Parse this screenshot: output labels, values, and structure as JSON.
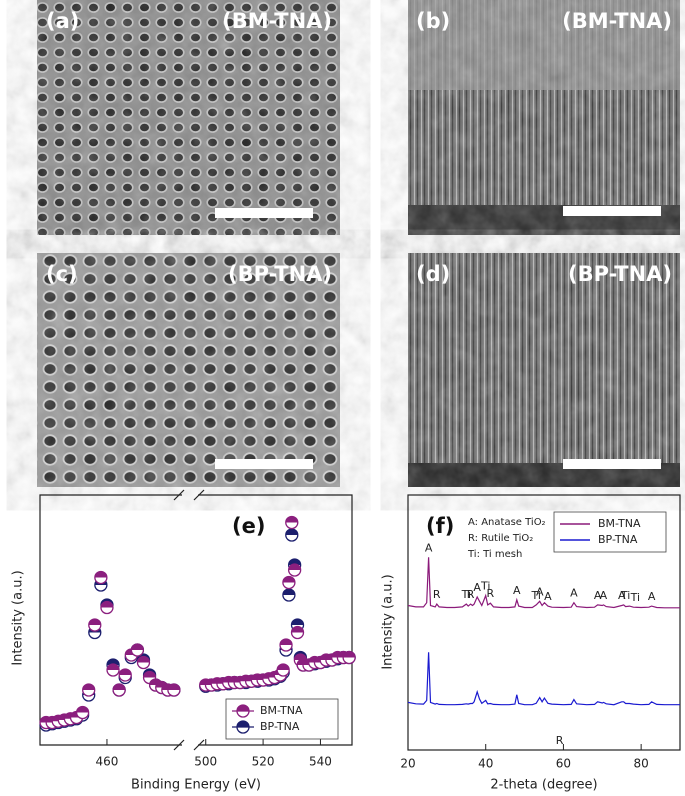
{
  "panels": [
    {
      "label": "(a)",
      "sample": "(BM-TNA)"
    },
    {
      "label": "(b)",
      "sample": "(BM-TNA)"
    },
    {
      "label": "(c)",
      "sample": "(BP-TNA)"
    },
    {
      "label": "(d)",
      "sample": "(BP-TNA)"
    }
  ],
  "chart_data": [
    {
      "type": "scatter",
      "label": "(e)",
      "xlabel": "Binding Energy (eV)",
      "ylabel": "Intensity (a.u.)",
      "xlim": [
        449,
        551
      ],
      "xbreak": [
        472,
        498
      ],
      "xticks": [
        460,
        500,
        520,
        540
      ],
      "ylim": [
        0,
        100
      ],
      "legend": "lower right",
      "x": [
        450,
        451,
        452,
        453,
        454,
        455,
        456,
        457,
        458,
        459,
        460,
        461,
        462,
        463,
        464,
        465,
        466,
        467,
        468,
        469,
        470,
        471,
        500,
        502,
        504,
        506,
        508,
        510,
        512,
        514,
        516,
        518,
        520,
        522,
        524,
        526,
        527,
        528,
        529,
        530,
        531,
        532,
        533,
        534,
        536,
        538,
        540,
        542,
        544,
        546,
        548,
        550
      ],
      "series": [
        {
          "name": "BM-TNA",
          "color": "#8b1f7e",
          "values": [
            9,
            9,
            9.5,
            10,
            10.5,
            11,
            13,
            22,
            48,
            67,
            55,
            30,
            22,
            28,
            36,
            38,
            33,
            27,
            24,
            23,
            22,
            22,
            24,
            24,
            24.5,
            24.5,
            25,
            25,
            25,
            25.5,
            25.5,
            26,
            26,
            26.5,
            27,
            28,
            30,
            40,
            65,
            89,
            70,
            45,
            34,
            32,
            32,
            33,
            33,
            34,
            34,
            35,
            35,
            35
          ]
        },
        {
          "name": "BP-TNA",
          "color": "#1c1f6e",
          "values": [
            8,
            8.5,
            9,
            9.5,
            10,
            10.5,
            12,
            20,
            45,
            64,
            56,
            32,
            22,
            27,
            35,
            38,
            34,
            28,
            24,
            23,
            22,
            22,
            23.5,
            24,
            24,
            24.5,
            24.5,
            25,
            25,
            25,
            25.5,
            25.5,
            26,
            26,
            26.5,
            27.5,
            29,
            38,
            60,
            84,
            72,
            48,
            35,
            32,
            32,
            32.5,
            33,
            33.5,
            34,
            34.5,
            35,
            35
          ]
        }
      ]
    },
    {
      "type": "line",
      "label": "(f)",
      "xlabel": "2-theta (degree)",
      "ylabel": "Intensity (a.u.)",
      "xlim": [
        20,
        90
      ],
      "xticks": [
        20,
        40,
        60,
        80
      ],
      "ylim": [
        10,
        100
      ],
      "legend": "upper right",
      "annotations": [
        "A: Anatase TiO₂",
        "R: Rutile TiO₂",
        "Ti: Ti mesh"
      ],
      "x": [
        20,
        22,
        24,
        24.8,
        25.3,
        25.8,
        27,
        27.4,
        28,
        30,
        32,
        34,
        35,
        35.5,
        36.1,
        36.6,
        37,
        37.8,
        38.4,
        39,
        40,
        40.5,
        41.2,
        42,
        44,
        46,
        47.5,
        48,
        48.5,
        50,
        52,
        53,
        53.9,
        54.5,
        55.1,
        56,
        57,
        60,
        62,
        62.7,
        63.4,
        66,
        68,
        68.8,
        70,
        70.3,
        71,
        73,
        75,
        75.5,
        76,
        77,
        78,
        80,
        82,
        82.7,
        84,
        86,
        88,
        90
      ],
      "series": [
        {
          "name": "BM-TNA",
          "color": "#8b1a7a",
          "values": [
            61,
            60.5,
            60.5,
            62,
            78,
            61,
            60.5,
            61.5,
            60.5,
            60.3,
            60.3,
            60.5,
            61.5,
            60.8,
            61.5,
            61,
            61.5,
            64,
            62.5,
            61,
            64.5,
            61.2,
            61.8,
            60.5,
            60.3,
            60.3,
            60.5,
            63,
            60.8,
            60.3,
            60.3,
            61.2,
            62.5,
            61,
            62,
            60.8,
            60.4,
            60.3,
            60.4,
            62,
            60.6,
            60.3,
            60.4,
            61.2,
            61,
            61.2,
            60.6,
            60.3,
            61,
            61.2,
            60.6,
            60.8,
            60.4,
            60.3,
            60.4,
            60.8,
            60.3,
            60.2,
            60.2,
            60.2
          ]
        },
        {
          "name": "BP-TNA",
          "color": "#1a1ad0",
          "values": [
            26.8,
            26.3,
            26.2,
            27.5,
            44.5,
            26.8,
            26.2,
            26.4,
            26.1,
            26,
            26,
            26.1,
            26.3,
            26.2,
            26.4,
            26.4,
            27,
            30.5,
            28,
            26.5,
            27.5,
            26.3,
            26.4,
            26.1,
            26,
            26,
            26.2,
            29.5,
            26.4,
            26,
            26,
            26.5,
            28.5,
            27,
            28.3,
            26.5,
            26.2,
            26,
            26.1,
            27.8,
            26.3,
            26,
            26.1,
            27,
            26.6,
            26.8,
            26.3,
            26,
            27,
            27,
            26.4,
            26.4,
            26.2,
            26,
            26.1,
            27,
            26.1,
            26,
            26,
            26
          ]
        }
      ],
      "peak_labels": [
        {
          "x": 25.3,
          "label": "A"
        },
        {
          "x": 27.4,
          "label": "R"
        },
        {
          "x": 35,
          "label": "Ti"
        },
        {
          "x": 36.1,
          "label": "R"
        },
        {
          "x": 37.8,
          "label": "A"
        },
        {
          "x": 40,
          "label": "Ti"
        },
        {
          "x": 41.2,
          "label": "R"
        },
        {
          "x": 48,
          "label": "A"
        },
        {
          "x": 53,
          "label": "Ti"
        },
        {
          "x": 53.9,
          "label": "A"
        },
        {
          "x": 56,
          "label": "A"
        },
        {
          "x": 59,
          "label": "R"
        },
        {
          "x": 62.7,
          "label": "A"
        },
        {
          "x": 68.8,
          "label": "A"
        },
        {
          "x": 70.3,
          "label": "A"
        },
        {
          "x": 75,
          "label": "A"
        },
        {
          "x": 76,
          "label": "Ti"
        },
        {
          "x": 78.5,
          "label": "Ti"
        },
        {
          "x": 82.7,
          "label": "A"
        }
      ]
    }
  ]
}
